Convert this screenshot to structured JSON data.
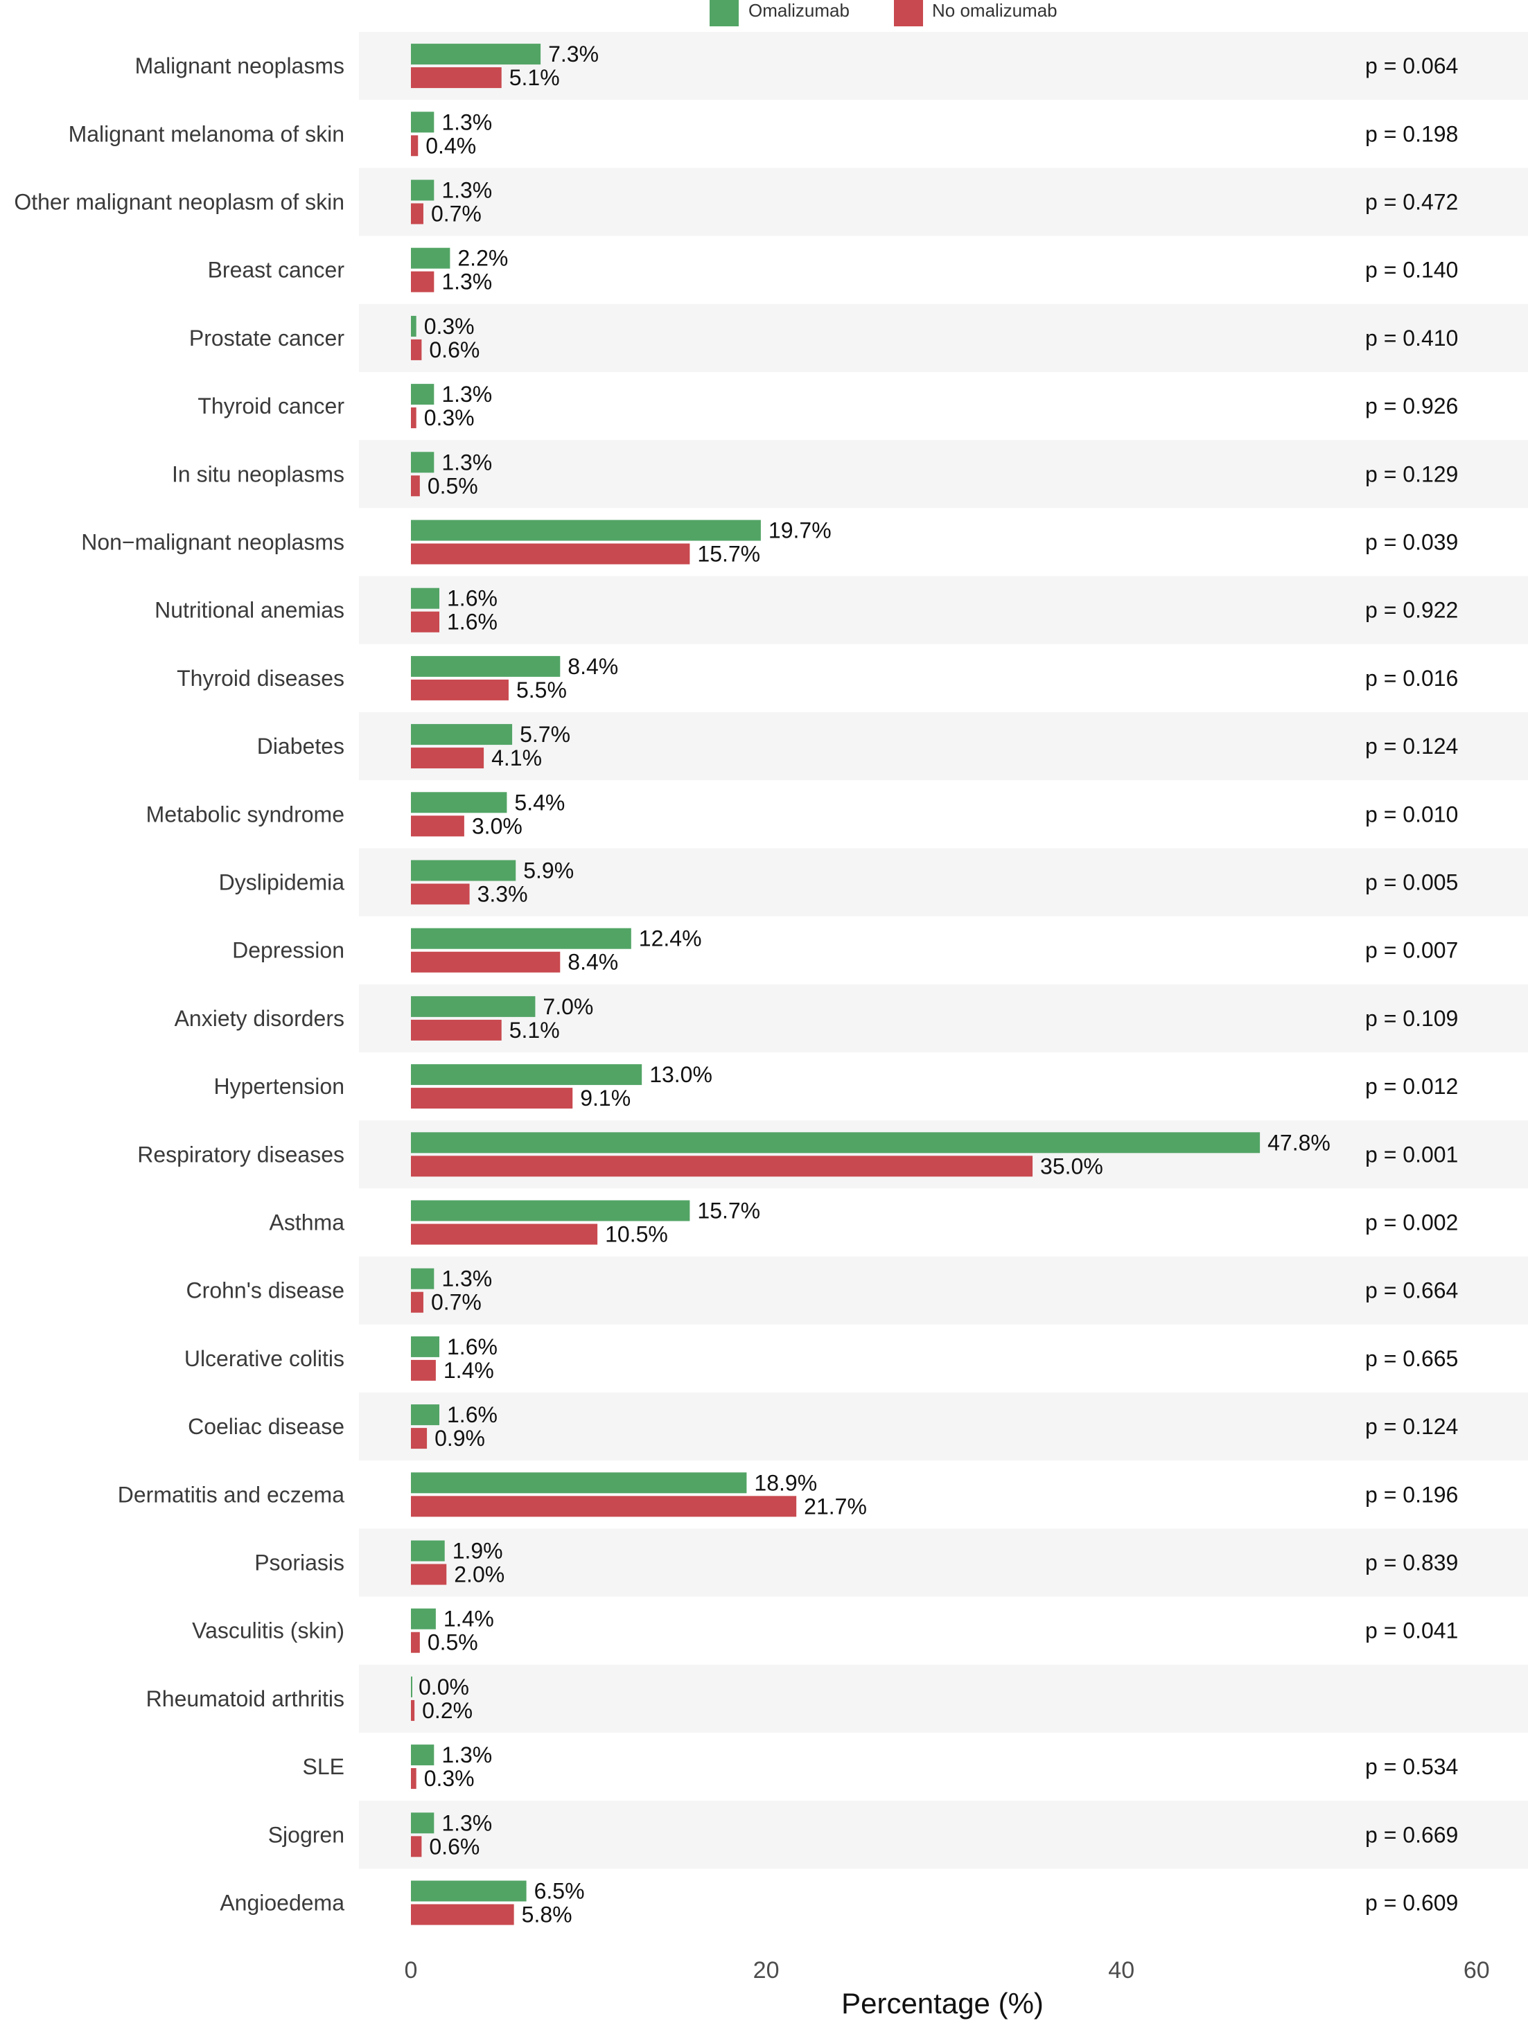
{
  "chart_data": {
    "type": "bar",
    "orientation": "horizontal",
    "xlabel": "Percentage (%)",
    "xlim": [
      0,
      60
    ],
    "xticks": [
      0,
      20,
      40,
      60
    ],
    "grid": false,
    "legend_position": "top",
    "categories": [
      "Malignant neoplasms",
      "Malignant melanoma of skin",
      "Other malignant neoplasm of skin",
      "Breast cancer",
      "Prostate cancer",
      "Thyroid cancer",
      "In situ neoplasms",
      "Non−malignant neoplasms",
      "Nutritional anemias",
      "Thyroid diseases",
      "Diabetes",
      "Metabolic syndrome",
      "Dyslipidemia",
      "Depression",
      "Anxiety disorders",
      "Hypertension",
      "Respiratory diseases",
      "Asthma",
      "Crohn's disease",
      "Ulcerative colitis",
      "Coeliac disease",
      "Dermatitis and eczema",
      "Psoriasis",
      "Vasculitis (skin)",
      "Rheumatoid arthritis",
      "SLE",
      "Sjogren",
      "Angioedema"
    ],
    "series": [
      {
        "name": "Omalizumab",
        "color": "#52a465",
        "values": [
          7.3,
          1.3,
          1.3,
          2.2,
          0.3,
          1.3,
          1.3,
          19.7,
          1.6,
          8.4,
          5.7,
          5.4,
          5.9,
          12.4,
          7.0,
          13.0,
          47.8,
          15.7,
          1.3,
          1.6,
          1.6,
          18.9,
          1.9,
          1.4,
          0.0,
          1.3,
          1.3,
          6.5
        ],
        "labels": [
          "7.3%",
          "1.3%",
          "1.3%",
          "2.2%",
          "0.3%",
          "1.3%",
          "1.3%",
          "19.7%",
          "1.6%",
          "8.4%",
          "5.7%",
          "5.4%",
          "5.9%",
          "12.4%",
          "7.0%",
          "13.0%",
          "47.8%",
          "15.7%",
          "1.3%",
          "1.6%",
          "1.6%",
          "18.9%",
          "1.9%",
          "1.4%",
          "0.0%",
          "1.3%",
          "1.3%",
          "6.5%"
        ]
      },
      {
        "name": "No omalizumab",
        "color": "#c8494f",
        "values": [
          5.1,
          0.4,
          0.7,
          1.3,
          0.6,
          0.3,
          0.5,
          15.7,
          1.6,
          5.5,
          4.1,
          3.0,
          3.3,
          8.4,
          5.1,
          9.1,
          35.0,
          10.5,
          0.7,
          1.4,
          0.9,
          21.7,
          2.0,
          0.5,
          0.2,
          0.3,
          0.6,
          5.8
        ],
        "labels": [
          "5.1%",
          "0.4%",
          "0.7%",
          "1.3%",
          "0.6%",
          "0.3%",
          "0.5%",
          "15.7%",
          "1.6%",
          "5.5%",
          "4.1%",
          "3.0%",
          "3.3%",
          "8.4%",
          "5.1%",
          "9.1%",
          "35.0%",
          "10.5%",
          "0.7%",
          "1.4%",
          "0.9%",
          "21.7%",
          "2.0%",
          "0.5%",
          "0.2%",
          "0.3%",
          "0.6%",
          "5.8%"
        ]
      }
    ],
    "p_values": [
      "p = 0.064",
      "p = 0.198",
      "p = 0.472",
      "p = 0.140",
      "p = 0.410",
      "p = 0.926",
      "p = 0.129",
      "p = 0.039",
      "p = 0.922",
      "p = 0.016",
      "p = 0.124",
      "p = 0.010",
      "p = 0.005",
      "p = 0.007",
      "p = 0.109",
      "p = 0.012",
      "p = 0.001",
      "p = 0.002",
      "p = 0.664",
      "p = 0.665",
      "p = 0.124",
      "p = 0.196",
      "p = 0.839",
      "p = 0.041",
      "",
      "p = 0.534",
      "p = 0.669",
      "p = 0.609"
    ],
    "row_band_colors": [
      "#f5f5f5",
      "#ffffff"
    ]
  }
}
